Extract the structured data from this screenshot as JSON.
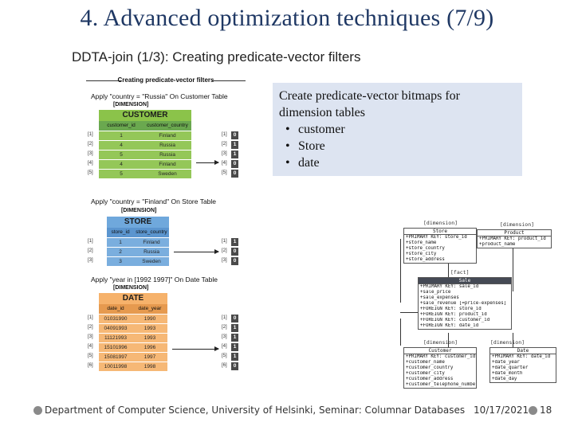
{
  "slide": {
    "title": "4. Advanced optimization techniques (7/9)",
    "subtitle": "DDTA-join (1/3): Creating predicate-vector filters"
  },
  "figure": {
    "heading": "Creating predicate-vector filters",
    "sections": [
      {
        "apply": "Apply \"country = \"Russia\" On Customer Table",
        "dimension_label": "[DIMENSION]",
        "table_name": "CUSTOMER",
        "table_color": "#8bc34a",
        "header_color": "#6aa84f",
        "columns": [
          "customer_id",
          "customer_country"
        ],
        "rows": [
          [
            "1",
            "Finland"
          ],
          [
            "4",
            "Russia"
          ],
          [
            "5",
            "Russia"
          ],
          [
            "4",
            "Finland"
          ],
          [
            "5",
            "Sweden"
          ]
        ],
        "row_index": [
          "[1]",
          "[2]",
          "[3]",
          "[4]",
          "[5]"
        ],
        "bitmap_index": [
          "[1]",
          "[2]",
          "[3]",
          "[4]",
          "[5]"
        ],
        "bitmap": [
          "0",
          "1",
          "1",
          "0",
          "0"
        ]
      },
      {
        "apply": "Apply \"country = \"Finland\" On Store Table",
        "dimension_label": "[DIMENSION]",
        "table_name": "STORE",
        "table_color": "#6fa8dc",
        "header_color": "#5b95cf",
        "columns": [
          "store_id",
          "store_country"
        ],
        "rows": [
          [
            "1",
            "Finland"
          ],
          [
            "2",
            "Russia"
          ],
          [
            "3",
            "Sweden"
          ]
        ],
        "row_index": [
          "[1]",
          "[2]",
          "[3]"
        ],
        "bitmap_index": [
          "[1]",
          "[2]",
          "[3]"
        ],
        "bitmap": [
          "1",
          "0",
          "0"
        ]
      },
      {
        "apply": "Apply \"year in [1992 1997]\" On Date Table",
        "dimension_label": "[DIMENSION]",
        "table_name": "DATE",
        "table_color": "#f6b26b",
        "header_color": "#e69a4f",
        "columns": [
          "date_id",
          "date_year"
        ],
        "rows": [
          [
            "01031990",
            "1990"
          ],
          [
            "04091993",
            "1993"
          ],
          [
            "11121993",
            "1993"
          ],
          [
            "15101996",
            "1996"
          ],
          [
            "15081997",
            "1997"
          ],
          [
            "10011998",
            "1998"
          ]
        ],
        "row_index": [
          "[1]",
          "[2]",
          "[3]",
          "[4]",
          "[5]",
          "[6]"
        ],
        "bitmap_index": [
          "[1]",
          "[2]",
          "[3]",
          "[4]",
          "[5]",
          "[6]"
        ],
        "bitmap": [
          "0",
          "1",
          "1",
          "1",
          "1",
          "0"
        ]
      }
    ]
  },
  "callout": {
    "intro": "Create predicate-vector bitmaps for dimension tables",
    "bullet": "•",
    "items": [
      "customer",
      "Store",
      "date"
    ]
  },
  "schema": {
    "store": {
      "tag": "[dimension]",
      "name": "Store",
      "rows": [
        "+PRIMARY KEY: store_id",
        "+store_name",
        "+store_country",
        "+store_city",
        "+store_address"
      ]
    },
    "product": {
      "tag": "[dimension]",
      "name": "Product",
      "rows": [
        "+PRIMARY KEY: product_id",
        "+product_name"
      ]
    },
    "sale": {
      "tag": "[fact]",
      "name": "Sale",
      "rows": [
        "+PRIMARY KEY: sale_id",
        "+sale_price",
        "+sale_expenses",
        "+sale_revenue [=price-expenses]",
        "+FOREIGN KEY: store_id",
        "+FOREIGN KEY: product_id",
        "+FOREIGN KEY: customer_id",
        "+FOREIGN KEY: date_id"
      ]
    },
    "customer": {
      "tag": "[dimension]",
      "name": "Customer",
      "rows": [
        "+PRIMARY KEY: customer_id",
        "+customer_name",
        "+customer_country",
        "+customer_city",
        "+customer_address",
        "+customer_telephone_number"
      ]
    },
    "date": {
      "tag": "[dimension]",
      "name": "Date",
      "rows": [
        "+PRIMARY KEY: date_id",
        "+date_year",
        "+date_quarter",
        "+date_month",
        "+date_day"
      ]
    }
  },
  "footer": {
    "department": "Department of Computer Science, University of Helsinki, Seminar: Columnar Databases",
    "date": "10/17/2021",
    "page": "18"
  }
}
